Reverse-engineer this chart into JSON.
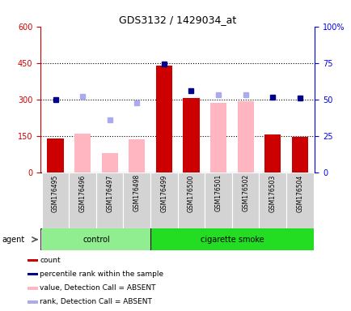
{
  "title": "GDS3132 / 1429034_at",
  "samples": [
    "GSM176495",
    "GSM176496",
    "GSM176497",
    "GSM176498",
    "GSM176499",
    "GSM176500",
    "GSM176501",
    "GSM176502",
    "GSM176503",
    "GSM176504"
  ],
  "count_values": [
    140,
    null,
    null,
    null,
    440,
    305,
    null,
    null,
    155,
    148
  ],
  "percentile_values": [
    300,
    null,
    null,
    null,
    447,
    337,
    null,
    null,
    310,
    307
  ],
  "value_absent": [
    null,
    160,
    80,
    138,
    null,
    null,
    285,
    292,
    null,
    null
  ],
  "rank_absent": [
    null,
    313,
    215,
    287,
    null,
    null,
    320,
    318,
    null,
    null
  ],
  "ylim_left": [
    0,
    600
  ],
  "ylim_right": [
    0,
    100
  ],
  "yticks_left": [
    0,
    150,
    300,
    450,
    600
  ],
  "yticks_right": [
    0,
    25,
    50,
    75,
    100
  ],
  "bar_color_count": "#CC0000",
  "bar_color_absent": "#FFB6C1",
  "dot_color_percentile": "#00008B",
  "dot_color_rank_absent": "#AAAAEE",
  "axis_left_color": "#CC0000",
  "axis_right_color": "#0000EE",
  "agent_label": "agent",
  "legend_labels": [
    "count",
    "percentile rank within the sample",
    "value, Detection Call = ABSENT",
    "rank, Detection Call = ABSENT"
  ],
  "legend_colors": [
    "#CC0000",
    "#00008B",
    "#FFB6C1",
    "#AAAAEE"
  ]
}
